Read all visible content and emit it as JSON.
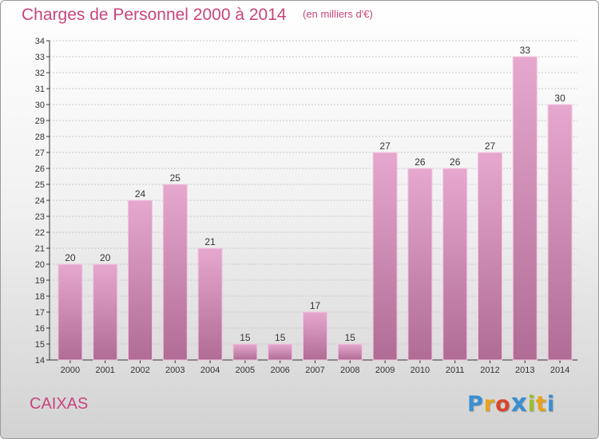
{
  "header": {
    "title": "Charges de Personnel 2000 à 2014",
    "subtitle": "(en milliers d'€)"
  },
  "commune_name": "CAIXAS",
  "logo": {
    "letters": [
      {
        "char": "P",
        "color": "#3a8fd1"
      },
      {
        "char": "r",
        "color": "#e8a21a"
      },
      {
        "char": "o",
        "color": "#d8452b"
      },
      {
        "char": "x",
        "color": "#3a8fd1"
      },
      {
        "char": "i",
        "color": "#9bbf2a"
      },
      {
        "char": "t",
        "color": "#e8a21a"
      },
      {
        "char": "i",
        "color": "#3a8fd1"
      }
    ]
  },
  "colors": {
    "bar_top": "#e6a8cf",
    "bar_bottom": "#b06c95",
    "bar_edge": "#f2c6df",
    "title": "#c7457d",
    "grid": "#c8c8c8"
  },
  "chart_data": {
    "type": "bar",
    "title": "Charges de Personnel 2000 à 2014",
    "subtitle": "(en milliers d'€)",
    "xlabel": "",
    "ylabel": "",
    "categories": [
      "2000",
      "2001",
      "2002",
      "2003",
      "2004",
      "2005",
      "2006",
      "2007",
      "2008",
      "2009",
      "2010",
      "2011",
      "2012",
      "2013",
      "2014"
    ],
    "values": [
      20,
      20,
      24,
      25,
      21,
      15,
      15,
      17,
      15,
      27,
      26,
      26,
      27,
      33,
      30
    ],
    "ylim": [
      14,
      34
    ],
    "yticks": [
      14,
      15,
      16,
      17,
      18,
      19,
      20,
      21,
      22,
      23,
      24,
      25,
      26,
      27,
      28,
      29,
      30,
      31,
      32,
      33,
      34
    ],
    "grid": true,
    "data_labels": true,
    "legend": "none"
  }
}
